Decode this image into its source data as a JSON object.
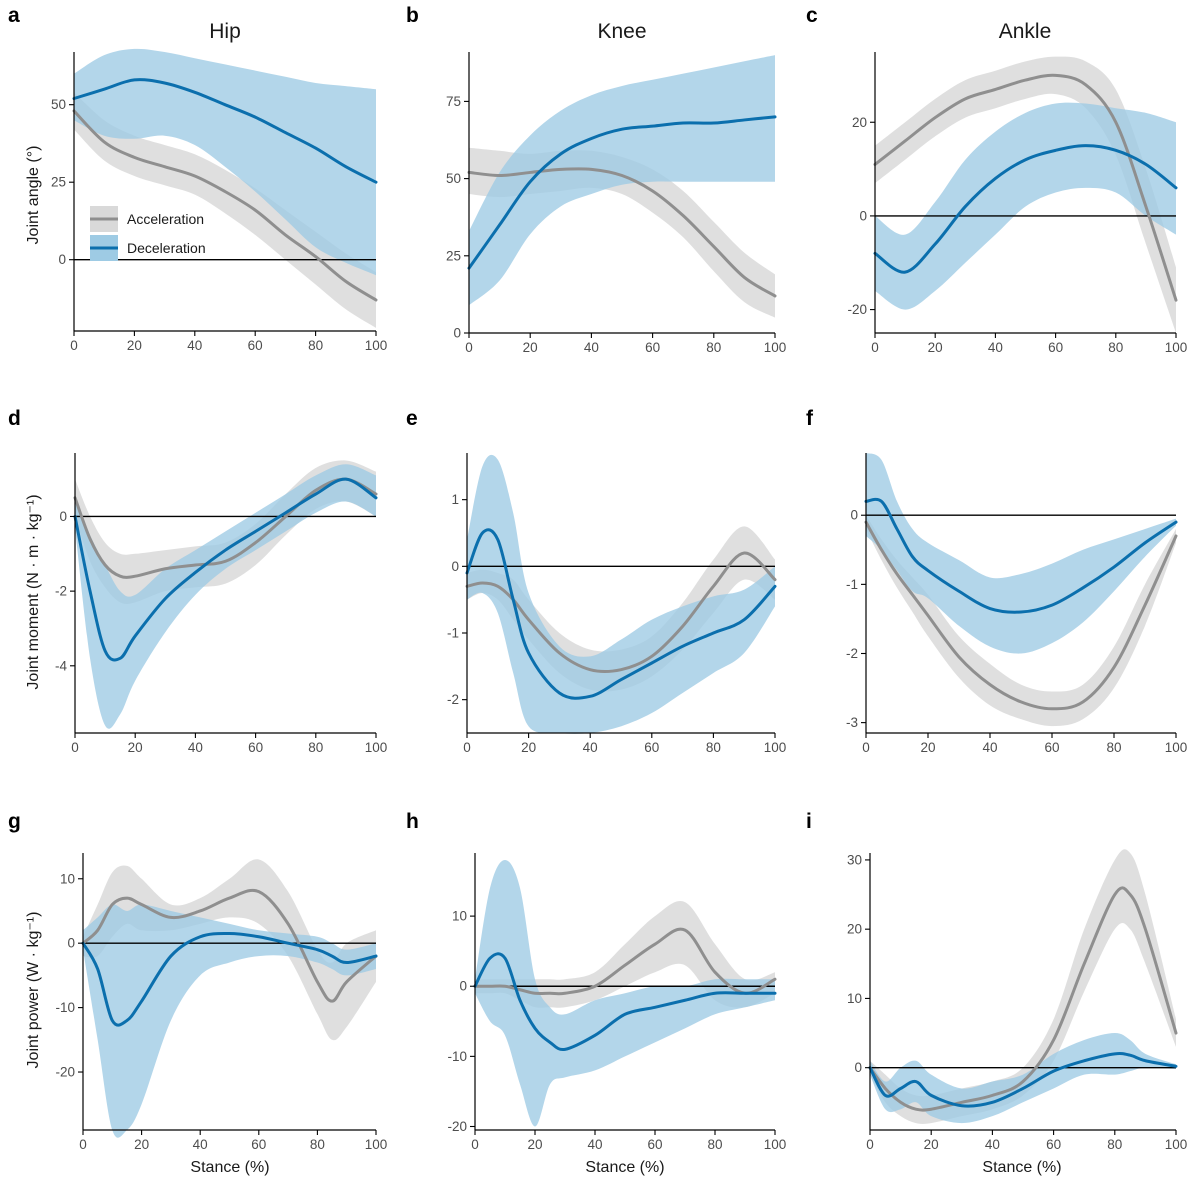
{
  "figure": {
    "column_titles": [
      "Hip",
      "Knee",
      "Ankle"
    ],
    "row_ylabels": [
      "Joint angle (°)",
      "Joint moment (N · m · kg⁻¹)",
      "Joint power (W · kg⁻¹)"
    ],
    "xlabel": "Stance (%)"
  },
  "legend": {
    "items": [
      {
        "label": "Acceleration",
        "line_color": "#8f8f8f",
        "band_color": "#d9d9d9"
      },
      {
        "label": "Deceleration",
        "line_color": "#0b6fad",
        "band_color": "#9ecbe4"
      }
    ]
  },
  "chart_data": [
    {
      "id": "a",
      "type": "line",
      "joint": "Hip",
      "ylabel": "Joint angle (°)",
      "xlim": [
        0,
        100
      ],
      "ylim": [
        -23,
        67
      ],
      "xticks": [
        0,
        20,
        40,
        60,
        80,
        100
      ],
      "yticks": [
        0,
        25,
        50
      ],
      "x": [
        0,
        10,
        20,
        30,
        40,
        50,
        60,
        70,
        80,
        90,
        100
      ],
      "series": [
        {
          "name": "Acceleration",
          "values": [
            48,
            38,
            33,
            30,
            27,
            22,
            16,
            8,
            1,
            -7,
            -13
          ],
          "lower": [
            42,
            32,
            27,
            24,
            21,
            15,
            8,
            0,
            -8,
            -16,
            -22
          ],
          "upper": [
            54,
            45,
            40,
            37,
            34,
            29,
            23,
            16,
            9,
            2,
            -4
          ]
        },
        {
          "name": "Deceleration",
          "values": [
            52,
            55,
            58,
            57,
            54,
            50,
            46,
            41,
            36,
            30,
            25
          ],
          "lower": [
            45,
            40,
            39,
            40,
            37,
            30,
            22,
            13,
            4,
            -1,
            -5
          ],
          "upper": [
            60,
            66,
            68,
            67,
            65,
            63,
            61,
            59,
            57,
            56,
            55
          ]
        }
      ]
    },
    {
      "id": "b",
      "type": "line",
      "joint": "Knee",
      "ylabel": "",
      "xlim": [
        0,
        100
      ],
      "ylim": [
        0,
        91
      ],
      "xticks": [
        0,
        20,
        40,
        60,
        80,
        100
      ],
      "yticks": [
        0,
        25,
        50,
        75
      ],
      "x": [
        0,
        10,
        20,
        30,
        40,
        50,
        60,
        70,
        80,
        90,
        100
      ],
      "series": [
        {
          "name": "Acceleration",
          "values": [
            52,
            51,
            52,
            53,
            53,
            51,
            46,
            38,
            28,
            18,
            12
          ],
          "lower": [
            45,
            44,
            45,
            46,
            47,
            45,
            39,
            31,
            20,
            10,
            5
          ],
          "upper": [
            60,
            59,
            58,
            59,
            59,
            57,
            53,
            46,
            36,
            26,
            19
          ]
        },
        {
          "name": "Deceleration",
          "values": [
            21,
            35,
            49,
            58,
            63,
            66,
            67,
            68,
            68,
            69,
            70
          ],
          "lower": [
            9,
            17,
            32,
            41,
            45,
            48,
            49,
            49,
            49,
            49,
            49
          ],
          "upper": [
            33,
            52,
            64,
            72,
            77,
            80,
            82,
            84,
            86,
            88,
            90
          ]
        }
      ]
    },
    {
      "id": "c",
      "type": "line",
      "joint": "Ankle",
      "ylabel": "",
      "xlim": [
        0,
        100
      ],
      "ylim": [
        -25,
        35
      ],
      "xticks": [
        0,
        20,
        40,
        60,
        80,
        100
      ],
      "yticks": [
        -20,
        0,
        20
      ],
      "x": [
        0,
        10,
        20,
        30,
        40,
        50,
        60,
        70,
        80,
        90,
        100
      ],
      "series": [
        {
          "name": "Acceleration",
          "values": [
            11,
            16,
            21,
            25,
            27,
            29,
            30,
            28,
            20,
            2,
            -18
          ],
          "lower": [
            7,
            12,
            17,
            21,
            23,
            25,
            26,
            23,
            13,
            -6,
            -25
          ],
          "upper": [
            15,
            20,
            25,
            29,
            31,
            33,
            34,
            33,
            27,
            10,
            -11
          ]
        },
        {
          "name": "Deceleration",
          "values": [
            -8,
            -12,
            -6,
            2,
            8,
            12,
            14,
            15,
            14,
            11,
            6
          ],
          "lower": [
            -16,
            -20,
            -16,
            -10,
            -4,
            2,
            5,
            6,
            5,
            0,
            -4
          ],
          "upper": [
            0,
            -4,
            3,
            12,
            18,
            22,
            24,
            24,
            23,
            22,
            20
          ]
        }
      ]
    },
    {
      "id": "d",
      "type": "line",
      "joint": "Hip",
      "ylabel": "Joint moment (N · m · kg⁻¹)",
      "xlim": [
        0,
        100
      ],
      "ylim": [
        -5.8,
        1.7
      ],
      "xticks": [
        0,
        20,
        40,
        60,
        80,
        100
      ],
      "yticks": [
        -4,
        -2,
        0
      ],
      "x": [
        0,
        5,
        10,
        15,
        20,
        30,
        40,
        50,
        60,
        70,
        80,
        90,
        100
      ],
      "series": [
        {
          "name": "Acceleration",
          "values": [
            0.5,
            -0.6,
            -1.3,
            -1.6,
            -1.6,
            -1.4,
            -1.3,
            -1.2,
            -0.7,
            0.0,
            0.7,
            1.0,
            0.6
          ],
          "lower": [
            0.0,
            -1.2,
            -1.9,
            -2.3,
            -2.3,
            -2.0,
            -1.9,
            -1.8,
            -1.3,
            -0.5,
            0.2,
            0.4,
            0.0
          ],
          "upper": [
            1.0,
            0.0,
            -0.7,
            -1.0,
            -1.0,
            -0.9,
            -0.8,
            -0.7,
            -0.2,
            0.6,
            1.3,
            1.5,
            1.2
          ]
        },
        {
          "name": "Deceleration",
          "values": [
            0.0,
            -2.0,
            -3.6,
            -3.8,
            -3.2,
            -2.2,
            -1.5,
            -0.9,
            -0.4,
            0.1,
            0.6,
            1.0,
            0.5
          ],
          "lower": [
            -0.3,
            -3.8,
            -5.6,
            -5.3,
            -4.4,
            -3.1,
            -2.1,
            -1.4,
            -0.9,
            -0.4,
            0.1,
            0.4,
            0.0
          ],
          "upper": [
            0.4,
            -0.5,
            -1.3,
            -2.0,
            -2.1,
            -1.4,
            -0.9,
            -0.4,
            0.1,
            0.6,
            1.1,
            1.4,
            1.1
          ]
        }
      ]
    },
    {
      "id": "e",
      "type": "line",
      "joint": "Knee",
      "ylabel": "",
      "xlim": [
        0,
        100
      ],
      "ylim": [
        -2.5,
        1.7
      ],
      "xticks": [
        0,
        20,
        40,
        60,
        80,
        100
      ],
      "yticks": [
        -2,
        -1,
        0,
        1
      ],
      "x": [
        0,
        5,
        10,
        15,
        20,
        30,
        40,
        50,
        60,
        70,
        80,
        90,
        100
      ],
      "series": [
        {
          "name": "Acceleration",
          "values": [
            -0.3,
            -0.25,
            -0.3,
            -0.5,
            -0.8,
            -1.3,
            -1.55,
            -1.55,
            -1.35,
            -0.9,
            -0.3,
            0.2,
            -0.2
          ],
          "lower": [
            -0.5,
            -0.4,
            -0.5,
            -0.8,
            -1.1,
            -1.6,
            -1.85,
            -1.85,
            -1.65,
            -1.25,
            -0.7,
            -0.2,
            -0.5
          ],
          "upper": [
            -0.1,
            -0.05,
            -0.1,
            -0.2,
            -0.5,
            -1.0,
            -1.25,
            -1.25,
            -1.05,
            -0.55,
            0.1,
            0.6,
            0.1
          ]
        },
        {
          "name": "Deceleration",
          "values": [
            -0.1,
            0.5,
            0.4,
            -0.5,
            -1.3,
            -1.9,
            -1.95,
            -1.7,
            -1.45,
            -1.2,
            -1.0,
            -0.8,
            -0.3
          ],
          "lower": [
            -0.5,
            -0.4,
            -0.7,
            -1.6,
            -2.4,
            -2.5,
            -2.5,
            -2.4,
            -2.2,
            -1.9,
            -1.6,
            -1.3,
            -0.6
          ],
          "upper": [
            0.4,
            1.5,
            1.6,
            0.8,
            -0.4,
            -1.2,
            -1.35,
            -1.1,
            -0.8,
            -0.6,
            -0.45,
            -0.35,
            0.0
          ]
        }
      ]
    },
    {
      "id": "f",
      "type": "line",
      "joint": "Ankle",
      "ylabel": "",
      "xlim": [
        0,
        100
      ],
      "ylim": [
        -3.15,
        0.9
      ],
      "xticks": [
        0,
        20,
        40,
        60,
        80,
        100
      ],
      "yticks": [
        -3,
        -2,
        -1,
        0
      ],
      "x": [
        0,
        5,
        10,
        15,
        20,
        30,
        40,
        50,
        60,
        70,
        80,
        90,
        100
      ],
      "series": [
        {
          "name": "Acceleration",
          "values": [
            -0.1,
            -0.5,
            -0.85,
            -1.15,
            -1.45,
            -2.05,
            -2.45,
            -2.7,
            -2.8,
            -2.7,
            -2.2,
            -1.3,
            -0.3
          ],
          "lower": [
            -0.2,
            -0.65,
            -1.05,
            -1.4,
            -1.75,
            -2.35,
            -2.75,
            -2.95,
            -3.05,
            -2.95,
            -2.5,
            -1.6,
            -0.4
          ],
          "upper": [
            0.0,
            -0.35,
            -0.65,
            -0.9,
            -1.15,
            -1.75,
            -2.15,
            -2.45,
            -2.55,
            -2.45,
            -1.9,
            -1.0,
            -0.2
          ]
        },
        {
          "name": "Deceleration",
          "values": [
            0.2,
            0.2,
            -0.2,
            -0.6,
            -0.8,
            -1.1,
            -1.35,
            -1.4,
            -1.3,
            -1.05,
            -0.75,
            -0.4,
            -0.1
          ],
          "lower": [
            -0.3,
            -0.5,
            -0.8,
            -1.1,
            -1.2,
            -1.6,
            -1.9,
            -2.0,
            -1.85,
            -1.55,
            -1.1,
            -0.6,
            -0.15
          ],
          "upper": [
            0.9,
            0.8,
            0.2,
            -0.2,
            -0.4,
            -0.65,
            -0.9,
            -0.85,
            -0.7,
            -0.5,
            -0.35,
            -0.2,
            -0.05
          ]
        }
      ]
    },
    {
      "id": "g",
      "type": "line",
      "joint": "Hip",
      "ylabel": "Joint power (W · kg⁻¹)",
      "xlim": [
        0,
        100
      ],
      "ylim": [
        -29,
        14
      ],
      "xticks": [
        0,
        20,
        40,
        60,
        80,
        100
      ],
      "yticks": [
        -20,
        -10,
        0,
        10
      ],
      "x": [
        0,
        5,
        10,
        15,
        20,
        30,
        40,
        50,
        60,
        70,
        80,
        85,
        90,
        100
      ],
      "series": [
        {
          "name": "Acceleration",
          "values": [
            0,
            2,
            6,
            7,
            6,
            4,
            5,
            7,
            8,
            3,
            -6,
            -9,
            -6,
            -2
          ],
          "lower": [
            -2,
            -2,
            1,
            3,
            2,
            2,
            3,
            4,
            3,
            -2,
            -11,
            -15,
            -13,
            -6
          ],
          "upper": [
            1,
            6,
            11,
            12,
            10,
            6,
            7,
            10,
            13,
            8,
            -1,
            -3,
            0,
            2
          ]
        },
        {
          "name": "Deceleration",
          "values": [
            0,
            -4,
            -12,
            -12,
            -9,
            -2,
            1,
            1.5,
            1,
            0,
            -1,
            -2,
            -3,
            -2
          ],
          "lower": [
            -1,
            -15,
            -29,
            -29,
            -25,
            -12,
            -5,
            -3,
            -2,
            -2,
            -3,
            -4,
            -5,
            -4
          ],
          "upper": [
            2,
            4,
            6,
            5,
            6,
            5,
            4,
            3,
            2,
            1.5,
            1,
            0,
            -1,
            0
          ]
        }
      ]
    },
    {
      "id": "h",
      "type": "line",
      "joint": "Knee",
      "ylabel": "",
      "xlim": [
        0,
        100
      ],
      "ylim": [
        -20.5,
        19
      ],
      "xticks": [
        0,
        20,
        40,
        60,
        80,
        100
      ],
      "yticks": [
        -20,
        -10,
        0,
        10
      ],
      "x": [
        0,
        5,
        10,
        15,
        20,
        25,
        30,
        40,
        50,
        60,
        70,
        80,
        90,
        100
      ],
      "series": [
        {
          "name": "Acceleration",
          "values": [
            0,
            0,
            0,
            -0.5,
            -1,
            -1,
            -1,
            0,
            3,
            6,
            8,
            2,
            -1,
            1
          ],
          "lower": [
            -1,
            -1,
            -1,
            -2,
            -3,
            -3,
            -3,
            -2,
            0,
            2,
            3,
            -2,
            -3,
            -1
          ],
          "upper": [
            1,
            1,
            1,
            1,
            1,
            1,
            1,
            2,
            6,
            10,
            12,
            6,
            1,
            2
          ]
        },
        {
          "name": "Deceleration",
          "values": [
            0,
            4,
            4,
            -2,
            -6,
            -8,
            -9,
            -7,
            -4,
            -3,
            -2,
            -1,
            -1,
            -1
          ],
          "lower": [
            -1,
            -5,
            -7,
            -14,
            -20,
            -14,
            -13,
            -12,
            -10,
            -8,
            -6,
            -4,
            -3,
            -2
          ],
          "upper": [
            1,
            14,
            18,
            14,
            1,
            -3,
            -4,
            -2,
            -1,
            0,
            0,
            1,
            1,
            1
          ]
        }
      ]
    },
    {
      "id": "i",
      "type": "line",
      "joint": "Ankle",
      "ylabel": "",
      "xlim": [
        0,
        100
      ],
      "ylim": [
        -9,
        31
      ],
      "xticks": [
        0,
        20,
        40,
        60,
        80,
        100
      ],
      "yticks": [
        0,
        10,
        20,
        30
      ],
      "x": [
        0,
        5,
        10,
        15,
        20,
        30,
        40,
        50,
        60,
        70,
        80,
        85,
        90,
        100
      ],
      "series": [
        {
          "name": "Acceleration",
          "values": [
            0,
            -3,
            -5,
            -6,
            -6,
            -5,
            -4,
            -2,
            4,
            15,
            25,
            25,
            20,
            5
          ],
          "lower": [
            -1,
            -5,
            -7,
            -8,
            -8,
            -7,
            -6,
            -4,
            1,
            11,
            20,
            20,
            15,
            3
          ],
          "upper": [
            1,
            -1,
            -3,
            -4,
            -4,
            -3,
            -2,
            0,
            7,
            20,
            30,
            31,
            25,
            7
          ]
        },
        {
          "name": "Deceleration",
          "values": [
            0,
            -4,
            -3,
            -2,
            -4,
            -5.5,
            -5,
            -3,
            -0.5,
            1,
            2,
            1.8,
            1,
            0.2
          ],
          "lower": [
            -1,
            -6,
            -6,
            -5,
            -7,
            -8,
            -7,
            -5,
            -3,
            -1,
            -1,
            -0.5,
            0,
            -0.2
          ],
          "upper": [
            1,
            -2,
            0,
            1,
            -1,
            -3,
            -2,
            -1,
            2,
            4,
            5,
            4,
            2,
            0.5
          ]
        }
      ]
    }
  ]
}
